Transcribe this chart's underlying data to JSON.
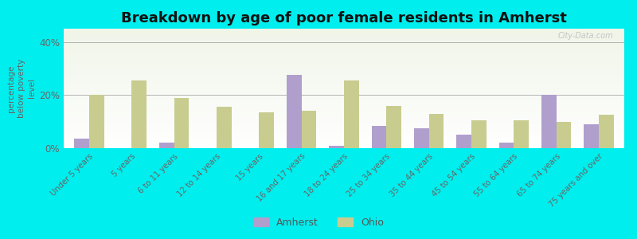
{
  "title": "Breakdown by age of poor female residents in Amherst",
  "categories": [
    "Under 5 years",
    "5 years",
    "6 to 11 years",
    "12 to 14 years",
    "15 years",
    "16 and 17 years",
    "18 to 24 years",
    "25 to 34 years",
    "35 to 44 years",
    "45 to 54 years",
    "55 to 64 years",
    "65 to 74 years",
    "75 years and over"
  ],
  "amherst_values": [
    3.5,
    0.0,
    2.0,
    0.0,
    0.0,
    27.5,
    1.0,
    8.5,
    7.5,
    5.0,
    2.0,
    20.0,
    9.0
  ],
  "ohio_values": [
    20.0,
    25.5,
    19.0,
    15.5,
    13.5,
    14.0,
    25.5,
    16.0,
    13.0,
    10.5,
    10.5,
    10.0,
    12.5
  ],
  "amherst_color": "#b09fcc",
  "ohio_color": "#c8cc8f",
  "background_color": "#00eeee",
  "ylabel": "percentage\nbelow poverty\nlevel",
  "ylim": [
    0,
    45
  ],
  "ytick_labels": [
    "0%",
    "20%",
    "40%"
  ],
  "ytick_vals": [
    0,
    20,
    40
  ],
  "title_fontsize": 13,
  "watermark": "City-Data.com",
  "legend_labels": [
    "Amherst",
    "Ohio"
  ]
}
